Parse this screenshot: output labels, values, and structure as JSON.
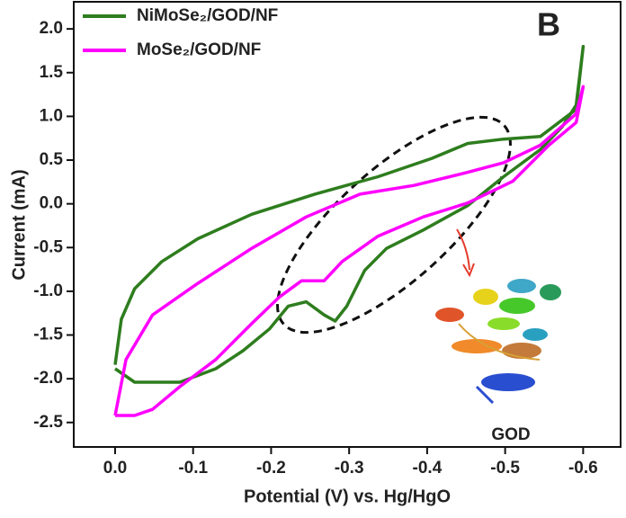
{
  "chart_data": {
    "type": "line",
    "panel_label": "B",
    "x_label": "Potential (V) vs. Hg/HgO",
    "y_label": "Current (mA)",
    "annotation": "GOD",
    "xlim": [
      0.053,
      -0.648
    ],
    "ylim": [
      -2.78,
      2.31
    ],
    "xticks": [
      {
        "value": 0,
        "label": "0.0"
      },
      -0.1,
      -0.2,
      -0.3,
      -0.4,
      -0.5,
      -0.6
    ],
    "yticks": [
      {
        "value": 2,
        "label": "2.0"
      },
      1.5,
      {
        "value": 1,
        "label": "1.0"
      },
      0.5,
      {
        "value": 0,
        "label": "0.0"
      },
      -0.5,
      {
        "value": -1,
        "label": "-1.0"
      },
      -1.5,
      {
        "value": -2,
        "label": "-2.0"
      },
      -2.5
    ],
    "legend": "upper left",
    "series": [
      {
        "name": "NiMoSe₂/GOD/NF",
        "color": "#2e7d1e",
        "x": [
          0,
          -0.025,
          -0.083,
          -0.129,
          -0.164,
          -0.198,
          -0.222,
          -0.245,
          -0.268,
          -0.282,
          -0.297,
          -0.32,
          -0.348,
          -0.395,
          -0.452,
          -0.498,
          -0.545,
          -0.573,
          -0.591,
          -0.6,
          -0.591,
          -0.545,
          -0.498,
          -0.452,
          -0.406,
          -0.337,
          -0.256,
          -0.175,
          -0.106,
          -0.06,
          -0.025,
          -0.008,
          0
        ],
        "values": [
          -1.885,
          -2.04,
          -2.04,
          -1.885,
          -1.68,
          -1.43,
          -1.17,
          -1.12,
          -1.27,
          -1.34,
          -1.17,
          -0.76,
          -0.51,
          -0.3,
          -0.02,
          0.31,
          0.62,
          0.88,
          1.13,
          1.8,
          1.08,
          0.77,
          0.74,
          0.69,
          0.52,
          0.31,
          0.11,
          -0.12,
          -0.4,
          -0.66,
          -0.97,
          -1.32,
          -1.84
        ]
      },
      {
        "name": "MoSe₂/GOD/NF",
        "color": "#ff00ff",
        "x": [
          0,
          -0.025,
          -0.048,
          -0.083,
          -0.129,
          -0.175,
          -0.21,
          -0.239,
          -0.268,
          -0.291,
          -0.337,
          -0.395,
          -0.452,
          -0.51,
          -0.556,
          -0.591,
          -0.6,
          -0.591,
          -0.545,
          -0.498,
          -0.452,
          -0.383,
          -0.314,
          -0.245,
          -0.175,
          -0.106,
          -0.048,
          -0.014,
          0
        ],
        "values": [
          -2.42,
          -2.42,
          -2.35,
          -2.09,
          -1.78,
          -1.37,
          -1.07,
          -0.88,
          -0.88,
          -0.66,
          -0.37,
          -0.15,
          0.01,
          0.26,
          0.67,
          0.93,
          1.34,
          1.03,
          0.67,
          0.47,
          0.36,
          0.21,
          0.11,
          -0.15,
          -0.51,
          -0.91,
          -1.27,
          -1.78,
          -2.42
        ]
      }
    ]
  }
}
